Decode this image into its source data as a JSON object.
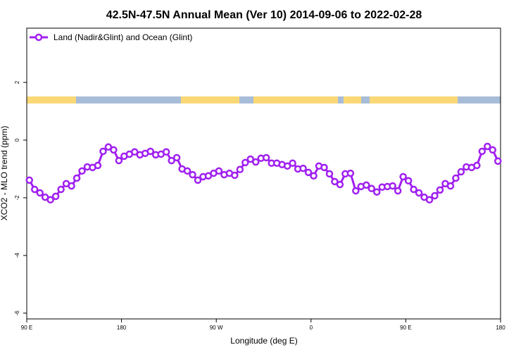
{
  "chart_data": {
    "type": "line",
    "title": "42.5N-47.5N Annual Mean (Ver 10)   2014-09-06 to 2022-02-28",
    "x_label": "Longitude (deg E)",
    "y_label": "XCO2 - MLO trend (ppm)",
    "xlim": [
      90,
      540
    ],
    "xticks": [
      {
        "value": 90,
        "label": "90 E"
      },
      {
        "value": 180,
        "label": "180"
      },
      {
        "value": 270,
        "label": "90 W"
      },
      {
        "value": 360,
        "label": "0"
      },
      {
        "value": 450,
        "label": "90 E"
      },
      {
        "value": 540,
        "label": "180"
      }
    ],
    "ylim": [
      -6.2,
      3.88
    ],
    "yticks": [
      -6,
      -4,
      -2,
      0,
      2
    ],
    "legend": "top-left",
    "x": [
      92.5,
      97.5,
      102.5,
      107.5,
      112.5,
      117.5,
      122.5,
      127.5,
      132.5,
      137.5,
      142.5,
      147.5,
      152.5,
      157.5,
      162.5,
      167.5,
      172.5,
      177.5,
      182.5,
      187.5,
      192.5,
      197.5,
      202.5,
      207.5,
      212.5,
      217.5,
      222.5,
      227.5,
      232.5,
      237.5,
      242.5,
      247.5,
      252.5,
      257.5,
      262.5,
      267.5,
      272.5,
      277.5,
      282.5,
      287.5,
      292.5,
      297.5,
      302.5,
      307.5,
      312.5,
      317.5,
      322.5,
      327.5,
      332.5,
      337.5,
      342.5,
      347.5,
      352.5,
      357.5,
      362.5,
      367.5,
      372.5,
      377.5,
      382.5,
      387.5,
      392.5,
      397.5,
      402.5,
      407.5,
      412.5,
      417.5,
      422.5,
      427.5,
      432.5,
      437.5,
      442.5,
      447.5,
      452.5,
      457.5,
      462.5,
      467.5,
      472.5,
      477.5,
      482.5,
      487.5,
      492.5,
      497.5,
      502.5,
      507.5,
      512.5,
      517.5,
      522.5,
      527.5,
      532.5,
      537.5
    ],
    "series": [
      {
        "name": "Land (Nadir&Glint) and Ocean (Glint)",
        "color": "#a020f0",
        "values": [
          -1.39,
          -1.71,
          -1.83,
          -1.98,
          -2.07,
          -1.95,
          -1.71,
          -1.51,
          -1.59,
          -1.32,
          -1.07,
          -0.93,
          -0.95,
          -0.88,
          -0.39,
          -0.24,
          -0.34,
          -0.71,
          -0.56,
          -0.49,
          -0.41,
          -0.51,
          -0.46,
          -0.39,
          -0.51,
          -0.49,
          -0.41,
          -0.71,
          -0.61,
          -1.0,
          -1.07,
          -1.2,
          -1.39,
          -1.27,
          -1.24,
          -1.15,
          -1.07,
          -1.2,
          -1.15,
          -1.22,
          -1.02,
          -0.78,
          -0.66,
          -0.76,
          -0.63,
          -0.61,
          -0.8,
          -0.8,
          -0.85,
          -0.9,
          -0.8,
          -1.0,
          -0.98,
          -1.12,
          -1.24,
          -0.9,
          -0.95,
          -1.17,
          -1.44,
          -1.54,
          -1.17,
          -1.15,
          -1.76,
          -1.61,
          -1.56,
          -1.68,
          -1.8,
          -1.63,
          -1.61,
          -1.59,
          -1.76,
          -1.27,
          -1.41,
          -1.71,
          -1.83,
          -1.98,
          -2.07,
          -1.93,
          -1.73,
          -1.51,
          -1.59,
          -1.32,
          -1.1,
          -0.93,
          -0.95,
          -0.88,
          -0.39,
          -0.22,
          -0.34,
          -0.73
        ]
      }
    ]
  }
}
